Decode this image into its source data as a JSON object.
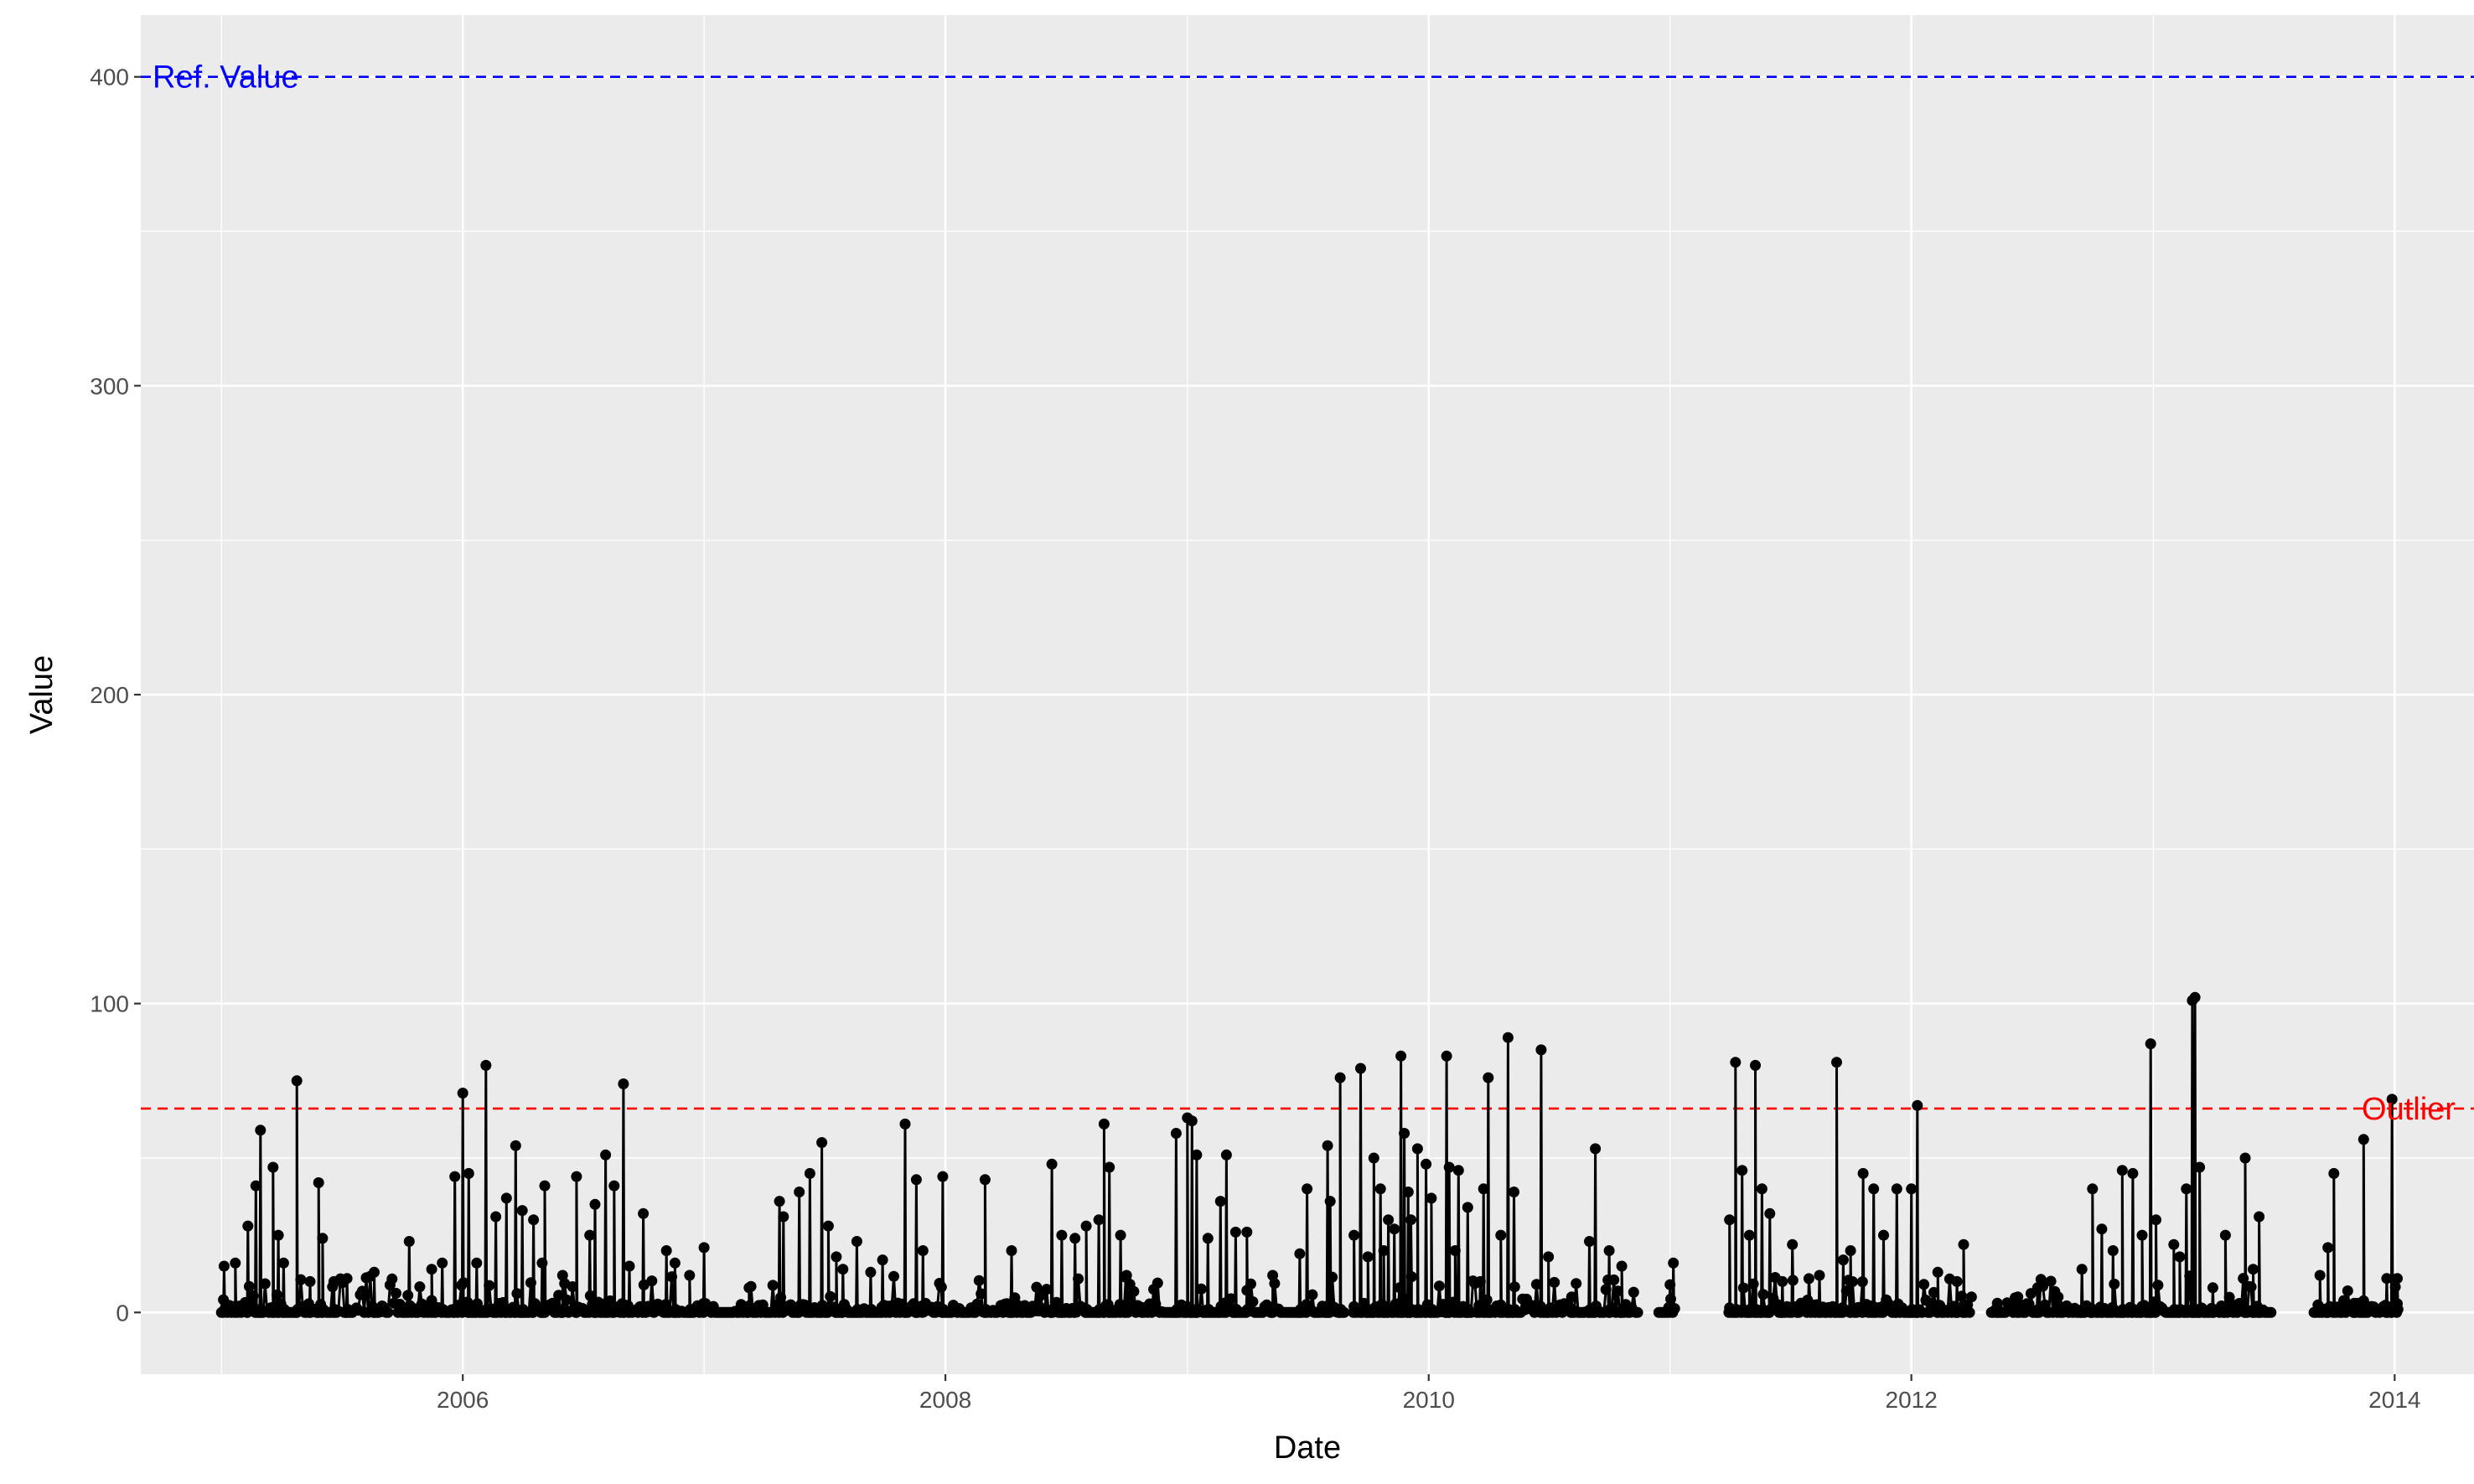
{
  "chart_data": {
    "type": "line",
    "xlabel": "Date",
    "ylabel": "Value",
    "x_ticks": [
      "2006",
      "2008",
      "2010",
      "2012",
      "2014"
    ],
    "y_ticks": [
      "0",
      "100",
      "200",
      "300",
      "400"
    ],
    "xlim": [
      "2004-09-01",
      "2014-05-01"
    ],
    "ylim": [
      -20,
      420
    ],
    "grid": true,
    "background": "#ebebeb",
    "series_color": "#000000",
    "ref_lines": [
      {
        "label": "Ref. Value",
        "value": 400,
        "color": "#0000ff",
        "linestyle": "dashed",
        "label_position": "left"
      },
      {
        "label": "Outlier",
        "value": 66,
        "color": "#ff0000",
        "linestyle": "dashed",
        "label_position": "right"
      }
    ],
    "spikes": [
      [
        "2005-01-05",
        15
      ],
      [
        "2005-01-22",
        16
      ],
      [
        "2005-02-10",
        28
      ],
      [
        "2005-02-22",
        41
      ],
      [
        "2005-03-01",
        59
      ],
      [
        "2005-03-20",
        47
      ],
      [
        "2005-03-28",
        25
      ],
      [
        "2005-04-05",
        16
      ],
      [
        "2005-04-25",
        75
      ],
      [
        "2005-05-15",
        10
      ],
      [
        "2005-05-28",
        42
      ],
      [
        "2005-06-03",
        24
      ],
      [
        "2005-06-20",
        10
      ],
      [
        "2005-07-10",
        11
      ],
      [
        "2005-08-20",
        13
      ],
      [
        "2005-10-12",
        23
      ],
      [
        "2005-11-15",
        14
      ],
      [
        "2005-12-01",
        16
      ],
      [
        "2005-12-20",
        44
      ],
      [
        "2006-01-01",
        71
      ],
      [
        "2006-01-10",
        45
      ],
      [
        "2006-01-22",
        16
      ],
      [
        "2006-02-05",
        80
      ],
      [
        "2006-02-20",
        31
      ],
      [
        "2006-03-08",
        37
      ],
      [
        "2006-03-22",
        54
      ],
      [
        "2006-04-01",
        33
      ],
      [
        "2006-04-18",
        30
      ],
      [
        "2006-05-01",
        16
      ],
      [
        "2006-05-05",
        41
      ],
      [
        "2006-06-01",
        12
      ],
      [
        "2006-06-22",
        44
      ],
      [
        "2006-07-12",
        25
      ],
      [
        "2006-07-20",
        35
      ],
      [
        "2006-08-05",
        51
      ],
      [
        "2006-08-18",
        41
      ],
      [
        "2006-09-01",
        74
      ],
      [
        "2006-09-10",
        15
      ],
      [
        "2006-10-01",
        32
      ],
      [
        "2006-11-05",
        20
      ],
      [
        "2006-11-18",
        16
      ],
      [
        "2006-12-10",
        12
      ],
      [
        "2007-01-01",
        21
      ],
      [
        "2007-03-10",
        8
      ],
      [
        "2007-04-25",
        36
      ],
      [
        "2007-05-01",
        31
      ],
      [
        "2007-05-25",
        39
      ],
      [
        "2007-06-10",
        45
      ],
      [
        "2007-06-28",
        55
      ],
      [
        "2007-07-08",
        28
      ],
      [
        "2007-07-20",
        18
      ],
      [
        "2007-07-30",
        14
      ],
      [
        "2007-08-20",
        23
      ],
      [
        "2007-09-10",
        13
      ],
      [
        "2007-09-28",
        17
      ],
      [
        "2007-11-01",
        61
      ],
      [
        "2007-11-18",
        43
      ],
      [
        "2007-11-28",
        20
      ],
      [
        "2007-12-28",
        44
      ],
      [
        "2008-03-01",
        43
      ],
      [
        "2008-04-10",
        20
      ],
      [
        "2008-06-10",
        48
      ],
      [
        "2008-06-25",
        25
      ],
      [
        "2008-07-15",
        24
      ],
      [
        "2008-08-01",
        28
      ],
      [
        "2008-08-20",
        30
      ],
      [
        "2008-08-28",
        61
      ],
      [
        "2008-09-05",
        47
      ],
      [
        "2008-09-22",
        25
      ],
      [
        "2008-10-01",
        12
      ],
      [
        "2008-12-15",
        58
      ],
      [
        "2009-01-01",
        63
      ],
      [
        "2009-01-08",
        62
      ],
      [
        "2009-01-15",
        51
      ],
      [
        "2009-02-01",
        24
      ],
      [
        "2009-02-20",
        36
      ],
      [
        "2009-03-01",
        51
      ],
      [
        "2009-03-15",
        26
      ],
      [
        "2009-04-01",
        26
      ],
      [
        "2009-05-10",
        12
      ],
      [
        "2009-06-20",
        19
      ],
      [
        "2009-07-01",
        40
      ],
      [
        "2009-08-01",
        54
      ],
      [
        "2009-08-05",
        36
      ],
      [
        "2009-08-20",
        76
      ],
      [
        "2009-09-05",
        49
      ],
      [
        "2009-09-20",
        79
      ],
      [
        "2009-10-01",
        18
      ],
      [
        "2009-10-25",
        20
      ],
      [
        "2009-11-10",
        27
      ],
      [
        "2009-12-01",
        39
      ],
      [
        "2009-12-15",
        53
      ],
      [
        "2009-12-28",
        48
      ],
      [
        "2010-01-05",
        37
      ],
      [
        "2010-01-28",
        83
      ],
      [
        "2010-02-10",
        20
      ],
      [
        "2010-03-01",
        34
      ],
      [
        "2010-03-20",
        10
      ],
      [
        "2010-03-28",
        1
      ],
      [
        "2009-09-10",
        25
      ],
      [
        "2009-10-10",
        50
      ],
      [
        "2009-10-20",
        40
      ],
      [
        "2009-11-01",
        30
      ],
      [
        "2009-11-20",
        83
      ],
      [
        "2009-11-25",
        58
      ],
      [
        "2009-12-05",
        30
      ],
      [
        "2010-02-01",
        47
      ],
      [
        "2010-02-15",
        46
      ],
      [
        "2010-03-25",
        40
      ],
      [
        "2010-04-01",
        76
      ],
      [
        "2010-04-20",
        25
      ],
      [
        "2010-05-01",
        89
      ],
      [
        "2010-05-10",
        39
      ],
      [
        "2010-06-20",
        85
      ],
      [
        "2010-07-01",
        18
      ],
      [
        "2010-08-05",
        5
      ],
      [
        "2010-09-01",
        23
      ],
      [
        "2010-09-10",
        53
      ],
      [
        "2010-10-01",
        20
      ],
      [
        "2010-10-20",
        15
      ],
      [
        "2011-01-01",
        9
      ],
      [
        "2011-01-06",
        16
      ],
      [
        "2011-04-01",
        30
      ],
      [
        "2011-04-10",
        81
      ],
      [
        "2011-04-20",
        46
      ],
      [
        "2011-05-01",
        25
      ],
      [
        "2011-05-10",
        80
      ],
      [
        "2011-05-20",
        40
      ],
      [
        "2011-06-01",
        32
      ],
      [
        "2011-06-20",
        10
      ],
      [
        "2011-07-05",
        22
      ],
      [
        "2011-07-28",
        4
      ],
      [
        "2011-08-15",
        12
      ],
      [
        "2011-09-10",
        81
      ],
      [
        "2011-09-20",
        17
      ],
      [
        "2011-10-01",
        20
      ],
      [
        "2011-10-20",
        45
      ],
      [
        "2011-11-05",
        40
      ],
      [
        "2011-11-20",
        25
      ],
      [
        "2011-12-10",
        40
      ],
      [
        "2012-01-01",
        40
      ],
      [
        "2012-01-10",
        67
      ],
      [
        "2012-02-10",
        13
      ],
      [
        "2012-03-10",
        10
      ],
      [
        "2012-03-20",
        22
      ],
      [
        "2012-05-10",
        3
      ],
      [
        "2012-06-10",
        5
      ],
      [
        "2012-07-10",
        8
      ],
      [
        "2012-08-10",
        5
      ],
      [
        "2012-09-15",
        14
      ],
      [
        "2012-10-01",
        40
      ],
      [
        "2012-10-15",
        27
      ],
      [
        "2012-11-01",
        20
      ],
      [
        "2012-11-15",
        46
      ],
      [
        "2012-12-01",
        45
      ],
      [
        "2012-12-15",
        25
      ],
      [
        "2012-12-28",
        87
      ],
      [
        "2013-01-05",
        30
      ],
      [
        "2013-02-01",
        22
      ],
      [
        "2013-02-10",
        18
      ],
      [
        "2013-02-20",
        40
      ],
      [
        "2013-03-01",
        101
      ],
      [
        "2013-03-05",
        102
      ],
      [
        "2013-03-12",
        47
      ],
      [
        "2013-04-01",
        8
      ],
      [
        "2013-04-20",
        25
      ],
      [
        "2013-05-20",
        50
      ],
      [
        "2013-06-01",
        14
      ],
      [
        "2013-06-10",
        31
      ],
      [
        "2013-07-01",
        5
      ],
      [
        "2013-09-10",
        12
      ],
      [
        "2013-09-22",
        21
      ],
      [
        "2013-10-01",
        45
      ],
      [
        "2013-11-01",
        3
      ],
      [
        "2013-11-15",
        56
      ],
      [
        "2013-12-20",
        11
      ],
      [
        "2013-12-28",
        69
      ],
      [
        "2014-01-05",
        11
      ]
    ],
    "segments": [
      [
        "2005-01-01",
        "2009-08-28"
      ],
      [
        "2009-09-10",
        "2010-11-15"
      ],
      [
        "2010-12-15",
        "2011-01-10"
      ],
      [
        "2011-04-01",
        "2012-04-01"
      ],
      [
        "2012-05-01",
        "2013-06-28"
      ],
      [
        "2013-09-01",
        "2014-01-05"
      ]
    ]
  }
}
